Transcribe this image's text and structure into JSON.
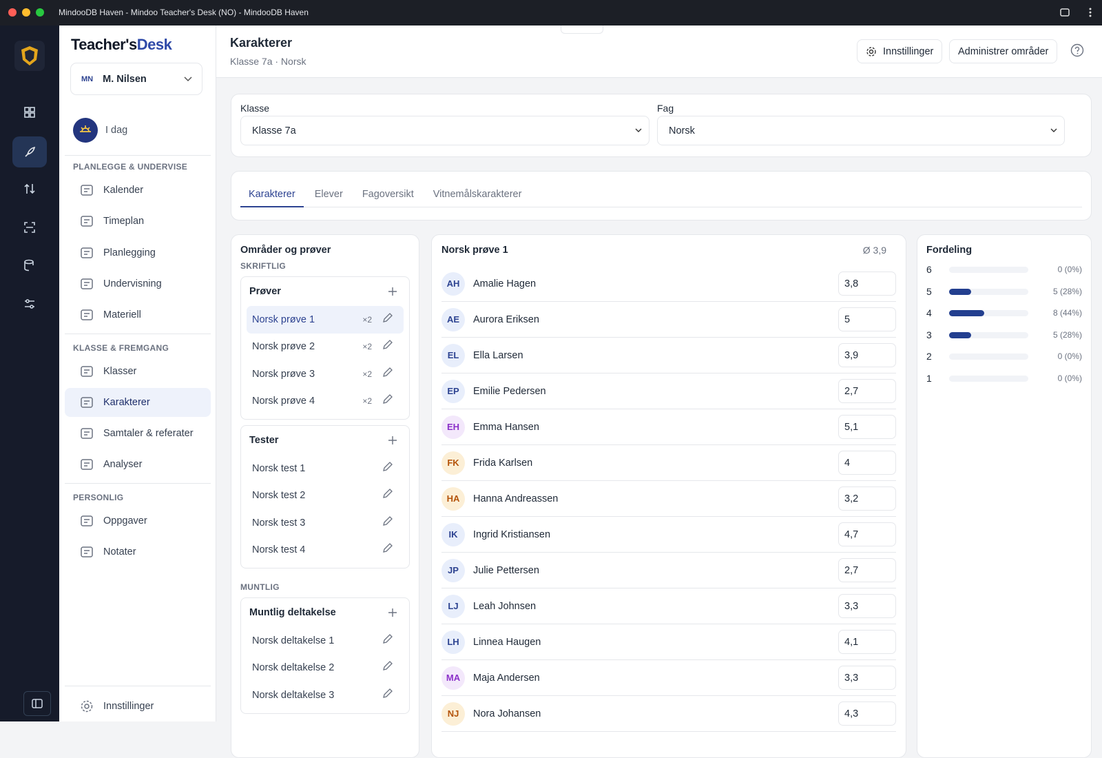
{
  "window": {
    "title": "MindooDB Haven - Mindoo Teacher's Desk (NO) - MindooDB Haven"
  },
  "sidebar": {
    "brand": [
      "Teacher's",
      "Desk"
    ],
    "user": {
      "initials": "MN",
      "name": "M. Nilsen"
    },
    "today": "I dag",
    "sections": [
      {
        "title": "PLANLEGGE & UNDERVISE",
        "items": [
          {
            "label": "Kalender"
          },
          {
            "label": "Timeplan"
          },
          {
            "label": "Planlegging"
          },
          {
            "label": "Undervisning"
          },
          {
            "label": "Materiell"
          }
        ]
      },
      {
        "title": "KLASSE & FREMGANG",
        "items": [
          {
            "label": "Klasser"
          },
          {
            "label": "Karakterer",
            "active": true
          },
          {
            "label": "Samtaler & referater"
          },
          {
            "label": "Analyser"
          }
        ]
      },
      {
        "title": "PERSONLIG",
        "items": [
          {
            "label": "Oppgaver"
          },
          {
            "label": "Notater"
          }
        ]
      }
    ],
    "footer": "Innstillinger"
  },
  "header": {
    "title": "Karakterer",
    "subtitle": "Klasse 7a · Norsk",
    "buttons": [
      "Innstillinger",
      "Administrer områder"
    ]
  },
  "filters": [
    {
      "label": "Klasse",
      "value": "Klasse 7a"
    },
    {
      "label": "Fag",
      "value": "Norsk"
    }
  ],
  "tabs": [
    {
      "label": "Karakterer",
      "active": true
    },
    {
      "label": "Elever"
    },
    {
      "label": "Fagoversikt"
    },
    {
      "label": "Vitnemålskarakterer"
    }
  ],
  "areas": {
    "title": "Områder og prøver",
    "groups": [
      {
        "title": "SKRIFTLIG",
        "sections": [
          {
            "title": "Prøver",
            "items": [
              {
                "label": "Norsk prøve 1",
                "weight": "×2",
                "active": true
              },
              {
                "label": "Norsk prøve 2",
                "weight": "×2"
              },
              {
                "label": "Norsk prøve 3",
                "weight": "×2"
              },
              {
                "label": "Norsk prøve 4",
                "weight": "×2"
              }
            ]
          },
          {
            "title": "Tester",
            "items": [
              {
                "label": "Norsk test 1"
              },
              {
                "label": "Norsk test 2"
              },
              {
                "label": "Norsk test 3"
              },
              {
                "label": "Norsk test 4"
              }
            ]
          }
        ]
      },
      {
        "title": "MUNTLIG",
        "sections": [
          {
            "title": "Muntlig deltakelse",
            "items": [
              {
                "label": "Norsk deltakelse 1"
              },
              {
                "label": "Norsk deltakelse 2"
              },
              {
                "label": "Norsk deltakelse 3"
              }
            ]
          }
        ]
      }
    ]
  },
  "grades": {
    "title": "Norsk prøve 1",
    "average": "Ø 3,9",
    "students": [
      {
        "initials": "AH",
        "name": "Amalie Hagen",
        "grade": "3,8",
        "color": "#e8eefb"
      },
      {
        "initials": "AE",
        "name": "Aurora Eriksen",
        "grade": "5",
        "color": "#e8eefb"
      },
      {
        "initials": "EL",
        "name": "Ella Larsen",
        "grade": "3,9",
        "color": "#e8eefb"
      },
      {
        "initials": "EP",
        "name": "Emilie Pedersen",
        "grade": "2,7",
        "color": "#e8eefb"
      },
      {
        "initials": "EH",
        "name": "Emma Hansen",
        "grade": "5,1",
        "color": "#f3e8fb"
      },
      {
        "initials": "FK",
        "name": "Frida Karlsen",
        "grade": "4",
        "color": "#fcefd6"
      },
      {
        "initials": "HA",
        "name": "Hanna Andreassen",
        "grade": "3,2",
        "color": "#fcefd6"
      },
      {
        "initials": "IK",
        "name": "Ingrid Kristiansen",
        "grade": "4,7",
        "color": "#e8eefb"
      },
      {
        "initials": "JP",
        "name": "Julie Pettersen",
        "grade": "2,7",
        "color": "#e8eefb"
      },
      {
        "initials": "LJ",
        "name": "Leah Johnsen",
        "grade": "3,3",
        "color": "#e8eefb"
      },
      {
        "initials": "LH",
        "name": "Linnea Haugen",
        "grade": "4,1",
        "color": "#e8eefb"
      },
      {
        "initials": "MA",
        "name": "Maja Andersen",
        "grade": "3,3",
        "color": "#f3e8fb"
      },
      {
        "initials": "NJ",
        "name": "Nora Johansen",
        "grade": "4,3",
        "color": "#fcefd6"
      }
    ]
  },
  "distribution": {
    "title": "Fordeling",
    "grades": [
      6,
      5,
      4,
      3,
      2,
      1
    ],
    "counts": [
      0,
      5,
      8,
      5,
      0,
      0
    ],
    "value_labels": [
      "0 (0%)",
      "5 (28%)",
      "8 (44%)",
      "5 (28%)",
      "0 (0%)",
      "0 (0%)"
    ],
    "color": "#233f8f"
  }
}
